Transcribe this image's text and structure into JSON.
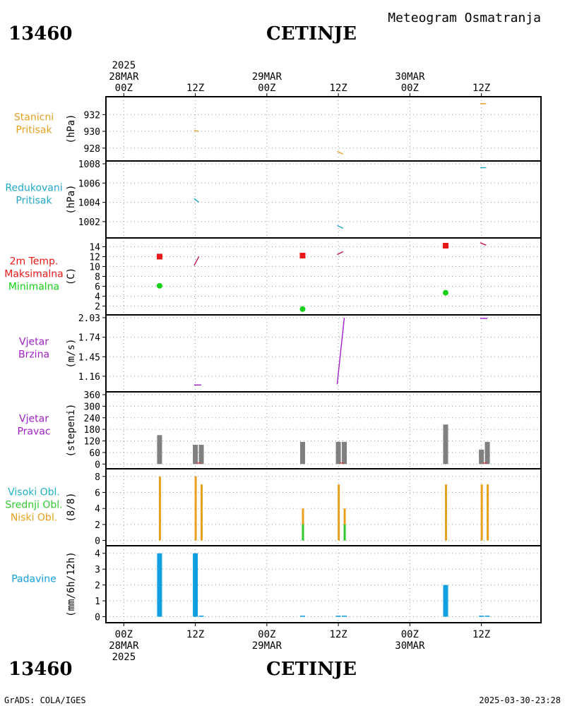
{
  "header": {
    "station_id": "13460",
    "station_name": "CETINJE",
    "product_title": "Meteogram Osmatranja"
  },
  "footer": {
    "station_id": "13460",
    "station_name": "CETINJE",
    "credit": "GrADS: COLA/IGES",
    "generated": "2025-03-30-23:28"
  },
  "time_axis": {
    "ticks": [
      {
        "t": 0,
        "top": [
          "2025",
          "28MAR",
          "00Z"
        ],
        "bottom": [
          "00Z",
          "28MAR",
          "2025"
        ]
      },
      {
        "t": 12,
        "top": [
          "12Z"
        ],
        "bottom": [
          "12Z"
        ]
      },
      {
        "t": 24,
        "top": [
          "29MAR",
          "00Z"
        ],
        "bottom": [
          "00Z",
          "29MAR"
        ]
      },
      {
        "t": 36,
        "top": [
          "12Z"
        ],
        "bottom": [
          "12Z"
        ]
      },
      {
        "t": 48,
        "top": [
          "30MAR",
          "00Z"
        ],
        "bottom": [
          "00Z",
          "30MAR"
        ]
      },
      {
        "t": 60,
        "top": [
          "12Z"
        ],
        "bottom": [
          "12Z"
        ]
      }
    ],
    "range_hours": [
      -3,
      70
    ]
  },
  "colors": {
    "pressure_station": "#e8a020",
    "pressure_reduced": "#20a8c8",
    "temp_max": "#e81818",
    "temp_min": "#18d018",
    "wind": "#a020c8",
    "wind_dir_bar": "#808080",
    "cloud_high": "#20b0c8",
    "cloud_mid": "#30c830",
    "cloud_low": "#e8a020",
    "precip": "#10a0e0"
  },
  "chart_data": [
    {
      "type": "line",
      "name": "stanicni_pritisak",
      "labels": [
        "Stanicni",
        "Pritisak"
      ],
      "label_color": "#e8a020",
      "ylabel": "(hPa)",
      "ylim": [
        926.8,
        933.8
      ],
      "yticks": [
        928,
        930,
        932
      ],
      "series": [
        {
          "color": "#e8a020",
          "segments": [
            [
              [
                11.8,
                930.1
              ],
              [
                12.6,
                930.0
              ]
            ],
            [
              [
                35.8,
                927.6
              ],
              [
                36.8,
                927.3
              ]
            ],
            [
              [
                59.8,
                933.3
              ],
              [
                60.8,
                933.3
              ]
            ]
          ]
        }
      ]
    },
    {
      "type": "line",
      "name": "redukovani_pritisak",
      "labels": [
        "Redukovani",
        "Pritisak"
      ],
      "label_color": "#20a8c8",
      "ylabel": "(hPa)",
      "ylim": [
        1000.6,
        1008.0
      ],
      "yticks": [
        1002,
        1004,
        1006,
        1008
      ],
      "series": [
        {
          "color": "#20a8c8",
          "segments": [
            [
              [
                11.8,
                1004.4
              ],
              [
                12.6,
                1004.0
              ]
            ],
            [
              [
                35.8,
                1001.6
              ],
              [
                36.8,
                1001.3
              ]
            ],
            [
              [
                59.8,
                1007.6
              ],
              [
                60.8,
                1007.6
              ]
            ]
          ]
        }
      ]
    },
    {
      "type": "line",
      "name": "temperatura",
      "labels": [
        "2m Temp.",
        "Maksimalna",
        "Minimalna"
      ],
      "label_colors": [
        "#e81818",
        "#e81818",
        "#18d018"
      ],
      "ylabel": "(C)",
      "ylim": [
        0.8,
        15.2
      ],
      "yticks": [
        2,
        4,
        6,
        8,
        10,
        12,
        14
      ],
      "series": [
        {
          "color": "#c01848",
          "segments": [
            [
              [
                11.8,
                10.2
              ],
              [
                12.6,
                12.0
              ]
            ],
            [
              [
                35.8,
                12.4
              ],
              [
                36.8,
                13.0
              ]
            ],
            [
              [
                59.8,
                14.8
              ],
              [
                60.8,
                14.3
              ]
            ]
          ]
        }
      ],
      "max_points": [
        [
          6,
          12.0
        ],
        [
          30,
          12.2
        ],
        [
          54,
          14.2
        ]
      ],
      "min_points": [
        [
          6,
          6.1
        ],
        [
          30,
          1.4
        ],
        [
          54,
          4.7
        ]
      ]
    },
    {
      "type": "line",
      "name": "vjetar_brzina",
      "labels": [
        "Vjetar",
        "Brzina"
      ],
      "label_color": "#a020c8",
      "ylabel": "(m/s)",
      "ylim": [
        0.97,
        2.03
      ],
      "yticks": [
        1.16,
        1.45,
        1.74,
        2.03
      ],
      "ytick_labels": [
        "1.16",
        "1.45",
        "1.74",
        "2.03"
      ],
      "series": [
        {
          "color": "#a020c8",
          "segments": [
            [
              [
                11.8,
                1.03
              ],
              [
                13.0,
                1.03
              ]
            ],
            [
              [
                35.8,
                1.04
              ],
              [
                37.0,
                2.03
              ]
            ],
            [
              [
                59.8,
                2.02
              ],
              [
                61.0,
                2.02
              ]
            ]
          ]
        }
      ]
    },
    {
      "type": "bar",
      "name": "vjetar_pravac",
      "labels": [
        "Vjetar",
        "Pravac"
      ],
      "label_color": "#a020c8",
      "ylabel": "(stepeni)",
      "ylim": [
        -10,
        360
      ],
      "yticks": [
        0,
        60,
        120,
        180,
        240,
        300,
        360
      ],
      "bars": [
        {
          "t": 6,
          "value": 150
        },
        {
          "t": 12,
          "value": 100
        },
        {
          "t": 13,
          "value": 100
        },
        {
          "t": 30,
          "value": 115
        },
        {
          "t": 36,
          "value": 115
        },
        {
          "t": 37,
          "value": 115
        },
        {
          "t": 54,
          "value": 205
        },
        {
          "t": 60,
          "value": 75
        },
        {
          "t": 61,
          "value": 115
        }
      ],
      "marks": [
        [
          12.6,
          5
        ],
        [
          36.6,
          5
        ],
        [
          60.6,
          5
        ]
      ]
    },
    {
      "type": "bar",
      "name": "oblacnost",
      "labels": [
        "Visoki Obl.",
        "Srednji Obl.",
        "Niski Obl."
      ],
      "label_colors": [
        "#20b0c8",
        "#30c830",
        "#e8a020"
      ],
      "ylabel": "(8/8)",
      "ylim": [
        -0.3,
        8.6
      ],
      "yticks": [
        0,
        2,
        4,
        6,
        8
      ],
      "low": [
        [
          6,
          8
        ],
        [
          12,
          8
        ],
        [
          13,
          7
        ],
        [
          30,
          4
        ],
        [
          36,
          7
        ],
        [
          37,
          4
        ],
        [
          54,
          7
        ],
        [
          60,
          7
        ],
        [
          61,
          7
        ]
      ],
      "mid": [
        [
          30,
          2
        ],
        [
          37,
          2
        ]
      ],
      "high": []
    },
    {
      "type": "bar",
      "name": "padavine",
      "labels": [
        "Padavine"
      ],
      "label_color": "#10a0e0",
      "ylabel": "(mm/6h/12h)",
      "ylim": [
        -0.2,
        4.3
      ],
      "yticks": [
        0,
        1,
        2,
        3,
        4
      ],
      "bars": [
        {
          "t": 6,
          "value": 4.0
        },
        {
          "t": 12,
          "value": 4.0
        },
        {
          "t": 13,
          "value": 0.02
        },
        {
          "t": 30,
          "value": 0.02
        },
        {
          "t": 36,
          "value": 0.02
        },
        {
          "t": 37,
          "value": 0.02
        },
        {
          "t": 54,
          "value": 2.0
        },
        {
          "t": 60,
          "value": 0.02
        },
        {
          "t": 61,
          "value": 0.02
        }
      ]
    }
  ]
}
